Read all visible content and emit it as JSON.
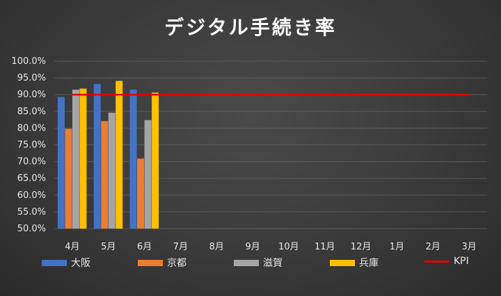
{
  "chart_data": {
    "type": "bar",
    "title": "デジタル手続き率",
    "categories": [
      "4月",
      "5月",
      "6月",
      "7月",
      "8月",
      "9月",
      "10月",
      "11月",
      "12月",
      "1月",
      "2月",
      "3月"
    ],
    "ylim": [
      0.5,
      1.0
    ],
    "yticks": [
      "100.0%",
      "95.0%",
      "90.0%",
      "85.0%",
      "80.0%",
      "75.0%",
      "70.0%",
      "65.0%",
      "60.0%",
      "55.0%",
      "50.0%"
    ],
    "grid": true,
    "legend_position": "bottom",
    "series": [
      {
        "name": "大阪",
        "type": "bar",
        "color": "#4472C4",
        "values": [
          0.893,
          0.932,
          0.915,
          null,
          null,
          null,
          null,
          null,
          null,
          null,
          null,
          null
        ]
      },
      {
        "name": "京都",
        "type": "bar",
        "color": "#ED7D31",
        "values": [
          0.798,
          0.821,
          0.709,
          null,
          null,
          null,
          null,
          null,
          null,
          null,
          null,
          null
        ]
      },
      {
        "name": "滋賀",
        "type": "bar",
        "color": "#A5A5A5",
        "values": [
          0.915,
          0.846,
          0.824,
          null,
          null,
          null,
          null,
          null,
          null,
          null,
          null,
          null
        ]
      },
      {
        "name": "兵庫",
        "type": "bar",
        "color": "#FFC000",
        "values": [
          0.918,
          0.941,
          0.906,
          null,
          null,
          null,
          null,
          null,
          null,
          null,
          null,
          null
        ]
      },
      {
        "name": "KPI",
        "type": "line",
        "color": "#E00000",
        "values": [
          0.9,
          0.9,
          0.9,
          0.9,
          0.9,
          0.9,
          0.9,
          0.9,
          0.9,
          0.9,
          0.9,
          0.9
        ]
      }
    ]
  }
}
